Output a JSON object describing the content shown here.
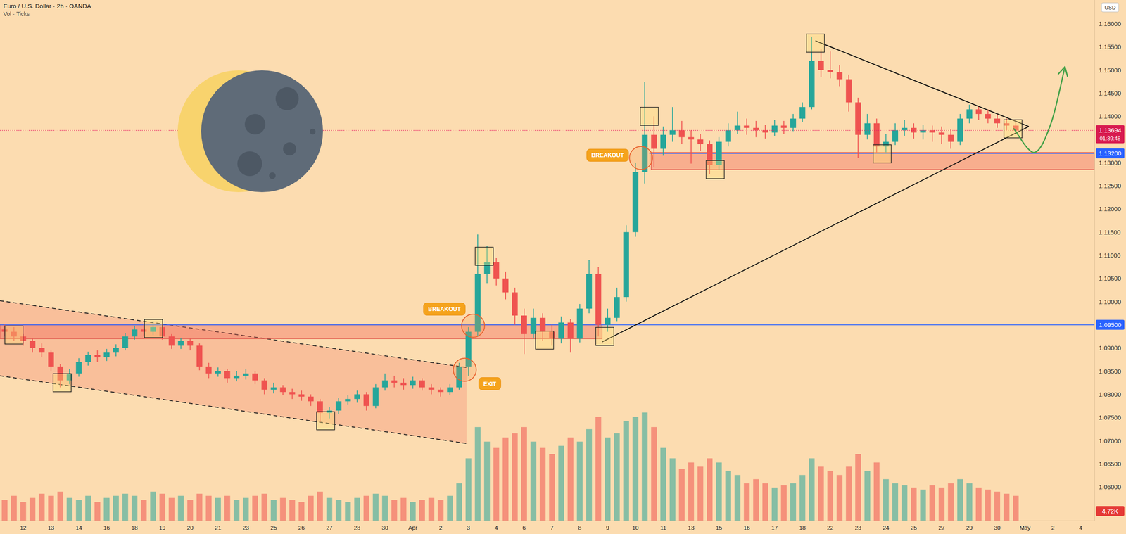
{
  "chart_data": {
    "type": "candlestick",
    "title": "Euro / U.S. Dollar · 2h · OANDA",
    "subtitle": "Vol · Ticks",
    "currency": "USD",
    "categories": [
      null,
      null,
      "12",
      null,
      null,
      "13",
      null,
      null,
      "14",
      null,
      null,
      "16",
      null,
      null,
      "18",
      null,
      null,
      "19",
      null,
      null,
      "20",
      null,
      null,
      "21",
      null,
      null,
      "23",
      null,
      null,
      "25",
      null,
      null,
      "26",
      null,
      null,
      "27",
      null,
      null,
      "28",
      null,
      null,
      "30",
      null,
      null,
      "Apr",
      null,
      null,
      "2",
      null,
      null,
      "3",
      null,
      null,
      "4",
      null,
      null,
      "6",
      null,
      null,
      "7",
      null,
      null,
      "8",
      null,
      null,
      "9",
      null,
      null,
      "10",
      null,
      null,
      "11",
      null,
      null,
      "13",
      null,
      null,
      "15",
      null,
      null,
      "16",
      null,
      null,
      "17",
      null,
      null,
      "18",
      null,
      null,
      "22",
      null,
      null,
      "23",
      null,
      null,
      "24",
      null,
      null,
      "25",
      null,
      null,
      "27",
      null,
      null,
      "29",
      null,
      null,
      "30",
      null,
      null,
      "May",
      null,
      null,
      "2",
      null,
      null,
      "4",
      null
    ],
    "open": [
      1.094,
      1.0935,
      1.0925,
      1.0915,
      1.09,
      1.089,
      1.086,
      1.083,
      1.0845,
      1.087,
      1.0885,
      1.088,
      1.089,
      1.09,
      1.0925,
      1.094,
      1.0935,
      1.0945,
      1.0925,
      1.0905,
      1.0915,
      1.0905,
      1.086,
      1.0845,
      1.085,
      1.0835,
      1.084,
      1.0845,
      1.083,
      1.081,
      1.0815,
      1.0805,
      1.08,
      1.0795,
      1.0785,
      1.076,
      1.0765,
      1.0785,
      1.079,
      1.08,
      1.0775,
      1.0815,
      1.083,
      1.0825,
      1.082,
      1.083,
      1.0815,
      1.081,
      1.0805,
      1.0815,
      1.086,
      1.0935,
      1.106,
      1.1085,
      1.105,
      1.102,
      1.097,
      1.093,
      1.0965,
      1.0935,
      1.092,
      1.0955,
      1.092,
      1.0985,
      1.106,
      1.095,
      1.0965,
      1.101,
      1.115,
      1.128,
      1.136,
      1.133,
      1.136,
      1.137,
      1.1355,
      1.135,
      1.134,
      1.1295,
      1.1345,
      1.137,
      1.138,
      1.1375,
      1.137,
      1.1365,
      1.138,
      1.1375,
      1.1395,
      1.142,
      1.152,
      1.15,
      1.1495,
      1.148,
      1.143,
      1.136,
      1.1385,
      1.1335,
      1.1345,
      1.137,
      1.1375,
      1.1365,
      1.137,
      1.1365,
      1.136,
      1.1345,
      1.1395,
      1.1415,
      1.1405,
      1.1395,
      1.1385,
      1.138,
      null,
      null,
      null,
      null,
      null,
      null,
      null,
      null
    ],
    "high": [
      1.095,
      1.0945,
      1.093,
      1.092,
      1.091,
      1.0895,
      1.0865,
      1.0855,
      1.0878,
      1.0892,
      1.0895,
      1.0898,
      1.0908,
      1.0932,
      1.0948,
      1.095,
      1.0958,
      1.095,
      1.093,
      1.0922,
      1.092,
      1.091,
      1.0868,
      1.0858,
      1.0855,
      1.085,
      1.0855,
      1.085,
      1.0835,
      1.0825,
      1.082,
      1.0812,
      1.0808,
      1.08,
      1.079,
      1.0772,
      1.0792,
      1.0798,
      1.0808,
      1.0805,
      1.0822,
      1.0845,
      1.084,
      1.0835,
      1.0838,
      1.0835,
      1.0822,
      1.0815,
      1.0822,
      1.0868,
      1.0945,
      1.1145,
      1.112,
      1.1095,
      1.1065,
      1.103,
      1.0985,
      1.0985,
      1.0975,
      1.095,
      1.0968,
      1.0962,
      1.0995,
      1.109,
      1.1075,
      1.0985,
      1.103,
      1.1165,
      1.13,
      1.1474,
      1.14,
      1.1378,
      1.142,
      1.139,
      1.137,
      1.1362,
      1.1348,
      1.1355,
      1.1385,
      1.141,
      1.1395,
      1.139,
      1.1382,
      1.1392,
      1.139,
      1.1405,
      1.143,
      1.1572,
      1.1545,
      1.154,
      1.151,
      1.149,
      1.144,
      1.1405,
      1.1395,
      1.1362,
      1.1385,
      1.1392,
      1.1385,
      1.1382,
      1.138,
      1.1378,
      1.1372,
      1.1405,
      1.1425,
      1.1422,
      1.1415,
      1.1405,
      1.1395,
      1.139,
      null,
      null,
      null,
      null,
      null,
      null,
      null,
      null
    ],
    "low": [
      1.0925,
      1.0915,
      1.0905,
      1.089,
      1.088,
      1.085,
      1.0815,
      1.0822,
      1.0838,
      1.0862,
      1.087,
      1.0872,
      1.0882,
      1.0895,
      1.0918,
      1.0925,
      1.0928,
      1.0918,
      1.0898,
      1.0898,
      1.0895,
      1.0852,
      1.0835,
      1.0838,
      1.0825,
      1.0828,
      1.0832,
      1.0822,
      1.08,
      1.0802,
      1.0798,
      1.079,
      1.0786,
      1.0775,
      1.074,
      1.0748,
      1.0758,
      1.0778,
      1.0782,
      1.0765,
      1.077,
      1.0808,
      1.0815,
      1.081,
      1.0812,
      1.0808,
      1.08,
      1.0795,
      1.0798,
      1.081,
      1.084,
      1.0925,
      1.104,
      1.1035,
      1.1005,
      1.095,
      1.0887,
      1.092,
      1.0915,
      1.0905,
      1.091,
      1.089,
      1.0912,
      1.0975,
      1.0925,
      1.0935,
      1.0958,
      1.1,
      1.114,
      1.1255,
      1.129,
      1.1315,
      1.1345,
      1.134,
      1.1298,
      1.1325,
      1.1275,
      1.1285,
      1.1335,
      1.1362,
      1.136,
      1.1355,
      1.1352,
      1.1358,
      1.1362,
      1.1368,
      1.1388,
      1.1415,
      1.1485,
      1.1482,
      1.1465,
      1.141,
      1.131,
      1.135,
      1.132,
      1.1322,
      1.1338,
      1.1358,
      1.1352,
      1.135,
      1.1345,
      1.134,
      1.133,
      1.1338,
      1.1385,
      1.1392,
      1.1385,
      1.1375,
      1.137,
      1.1362,
      null,
      null,
      null,
      null,
      null,
      null,
      null,
      null
    ],
    "close": [
      1.0935,
      1.0925,
      1.0915,
      1.09,
      1.089,
      1.086,
      1.083,
      1.0845,
      1.087,
      1.0885,
      1.088,
      1.089,
      1.09,
      1.0925,
      1.094,
      1.0935,
      1.0945,
      1.0925,
      1.0905,
      1.0915,
      1.0905,
      1.086,
      1.0845,
      1.085,
      1.0835,
      1.084,
      1.0845,
      1.083,
      1.081,
      1.0815,
      1.0805,
      1.08,
      1.0795,
      1.0785,
      1.076,
      1.0765,
      1.0785,
      1.079,
      1.08,
      1.0775,
      1.0815,
      1.083,
      1.0825,
      1.082,
      1.083,
      1.0815,
      1.081,
      1.0805,
      1.0815,
      1.086,
      1.0935,
      1.106,
      1.1085,
      1.105,
      1.102,
      1.097,
      1.093,
      1.0965,
      1.0935,
      1.092,
      1.0955,
      1.092,
      1.0985,
      1.106,
      1.095,
      1.0965,
      1.101,
      1.115,
      1.128,
      1.136,
      1.133,
      1.136,
      1.137,
      1.1355,
      1.135,
      1.134,
      1.1295,
      1.1345,
      1.137,
      1.138,
      1.1375,
      1.137,
      1.1365,
      1.138,
      1.1375,
      1.1395,
      1.142,
      1.152,
      1.15,
      1.1495,
      1.148,
      1.143,
      1.136,
      1.1385,
      1.1335,
      1.1345,
      1.137,
      1.1375,
      1.1365,
      1.137,
      1.1365,
      1.136,
      1.1345,
      1.1395,
      1.1415,
      1.1405,
      1.1395,
      1.1385,
      1.138,
      1.13694,
      null,
      null,
      null,
      null,
      null,
      null,
      null,
      null
    ],
    "volume": [
      10,
      12,
      9,
      11,
      13,
      12,
      14,
      11,
      10,
      12,
      9,
      11,
      12,
      13,
      12,
      10,
      14,
      13,
      11,
      12,
      10,
      13,
      12,
      11,
      12,
      10,
      11,
      12,
      13,
      10,
      11,
      10,
      9,
      12,
      14,
      11,
      10,
      9,
      11,
      12,
      13,
      12,
      10,
      11,
      9,
      10,
      11,
      10,
      12,
      18,
      30,
      45,
      38,
      35,
      40,
      42,
      45,
      38,
      35,
      32,
      36,
      40,
      38,
      44,
      50,
      40,
      42,
      48,
      50,
      52,
      45,
      35,
      30,
      25,
      28,
      26,
      30,
      28,
      24,
      22,
      18,
      20,
      18,
      16,
      17,
      18,
      22,
      30,
      26,
      24,
      22,
      26,
      32,
      24,
      28,
      20,
      18,
      17,
      16,
      15,
      17,
      16,
      18,
      20,
      18,
      16,
      15,
      14,
      13,
      12,
      null,
      null,
      null,
      null,
      null,
      null,
      null,
      null
    ],
    "ylim": [
      1.0527,
      1.1651
    ],
    "yticks": [
      {
        "value": 1.06,
        "label": "1.06000"
      },
      {
        "value": 1.065,
        "label": "1.06500"
      },
      {
        "value": 1.07,
        "label": "1.07000"
      },
      {
        "value": 1.075,
        "label": "1.07500"
      },
      {
        "value": 1.08,
        "label": "1.08000"
      },
      {
        "value": 1.085,
        "label": "1.08500"
      },
      {
        "value": 1.09,
        "label": "1.09000"
      },
      {
        "value": 1.1,
        "label": "1.10000"
      },
      {
        "value": 1.105,
        "label": "1.10500"
      },
      {
        "value": 1.11,
        "label": "1.11000"
      },
      {
        "value": 1.115,
        "label": "1.11500"
      },
      {
        "value": 1.12,
        "label": "1.12000"
      },
      {
        "value": 1.125,
        "label": "1.12500"
      },
      {
        "value": 1.13,
        "label": "1.13000"
      },
      {
        "value": 1.14,
        "label": "1.14000"
      },
      {
        "value": 1.145,
        "label": "1.14500"
      },
      {
        "value": 1.15,
        "label": "1.15000"
      },
      {
        "value": 1.155,
        "label": "1.15500"
      },
      {
        "value": 1.16,
        "label": "1.16000"
      }
    ],
    "volume_lim": [
      0,
      60
    ],
    "grid": false,
    "last_label": "1.13694",
    "countdown": "01:39:48",
    "volume_tag": {
      "value": 4.72,
      "label": "4.72K"
    },
    "levels": [
      {
        "value": 1.095,
        "label": "1.09500",
        "from": -0.5
      },
      {
        "value": 1.132,
        "label": "1.13200",
        "from": 69.5
      }
    ],
    "zones": [
      {
        "lo": 1.092,
        "hi": 1.095,
        "from": -0.5,
        "to": 64.4
      },
      {
        "lo": 1.1285,
        "hi": 1.1322,
        "from": 69.7,
        "to": 117.5
      }
    ],
    "channel": {
      "upper": [
        [
          -0.5,
          1.1002
        ],
        [
          49.8,
          1.0858
        ]
      ],
      "lower": [
        [
          -0.5,
          1.084
        ],
        [
          49.8,
          1.0694
        ]
      ],
      "line_style": "dashed"
    },
    "lines": [
      {
        "points": [
          [
            87.4,
            1.1563
          ],
          [
            110.4,
            1.1378
          ]
        ],
        "line_style": "solid"
      },
      {
        "points": [
          [
            64.4,
            1.0913
          ],
          [
            110.4,
            1.1378
          ]
        ],
        "line_style": "solid"
      }
    ],
    "highlights": [
      [
        1.0,
        1.0928
      ],
      [
        6.2,
        1.0825
      ],
      [
        16.05,
        1.0942
      ],
      [
        34.6,
        1.0743
      ],
      [
        51.7,
        1.1098
      ],
      [
        58.2,
        1.0917
      ],
      [
        64.7,
        1.0925
      ],
      [
        69.5,
        1.14
      ],
      [
        76.6,
        1.1285
      ],
      [
        87.4,
        1.1558
      ],
      [
        94.6,
        1.1319
      ],
      [
        108.7,
        1.1373
      ]
    ],
    "annotations": [
      {
        "text": "BREAKOUT",
        "x": 65.0,
        "y": 1.1316,
        "circle": [
          68.6,
          1.131
        ]
      },
      {
        "text": "BREAKOUT",
        "x": 47.4,
        "y": 1.0984,
        "circle": [
          50.5,
          1.0948
        ]
      },
      {
        "text": "EXIT",
        "x": 52.3,
        "y": 1.0823,
        "circle": [
          49.6,
          1.0853
        ]
      }
    ],
    "projection": [
      [
        108.8,
        1.1373
      ],
      [
        111.0,
        1.1322
      ],
      [
        112.8,
        1.1385
      ],
      [
        114.3,
        1.1507
      ]
    ]
  }
}
